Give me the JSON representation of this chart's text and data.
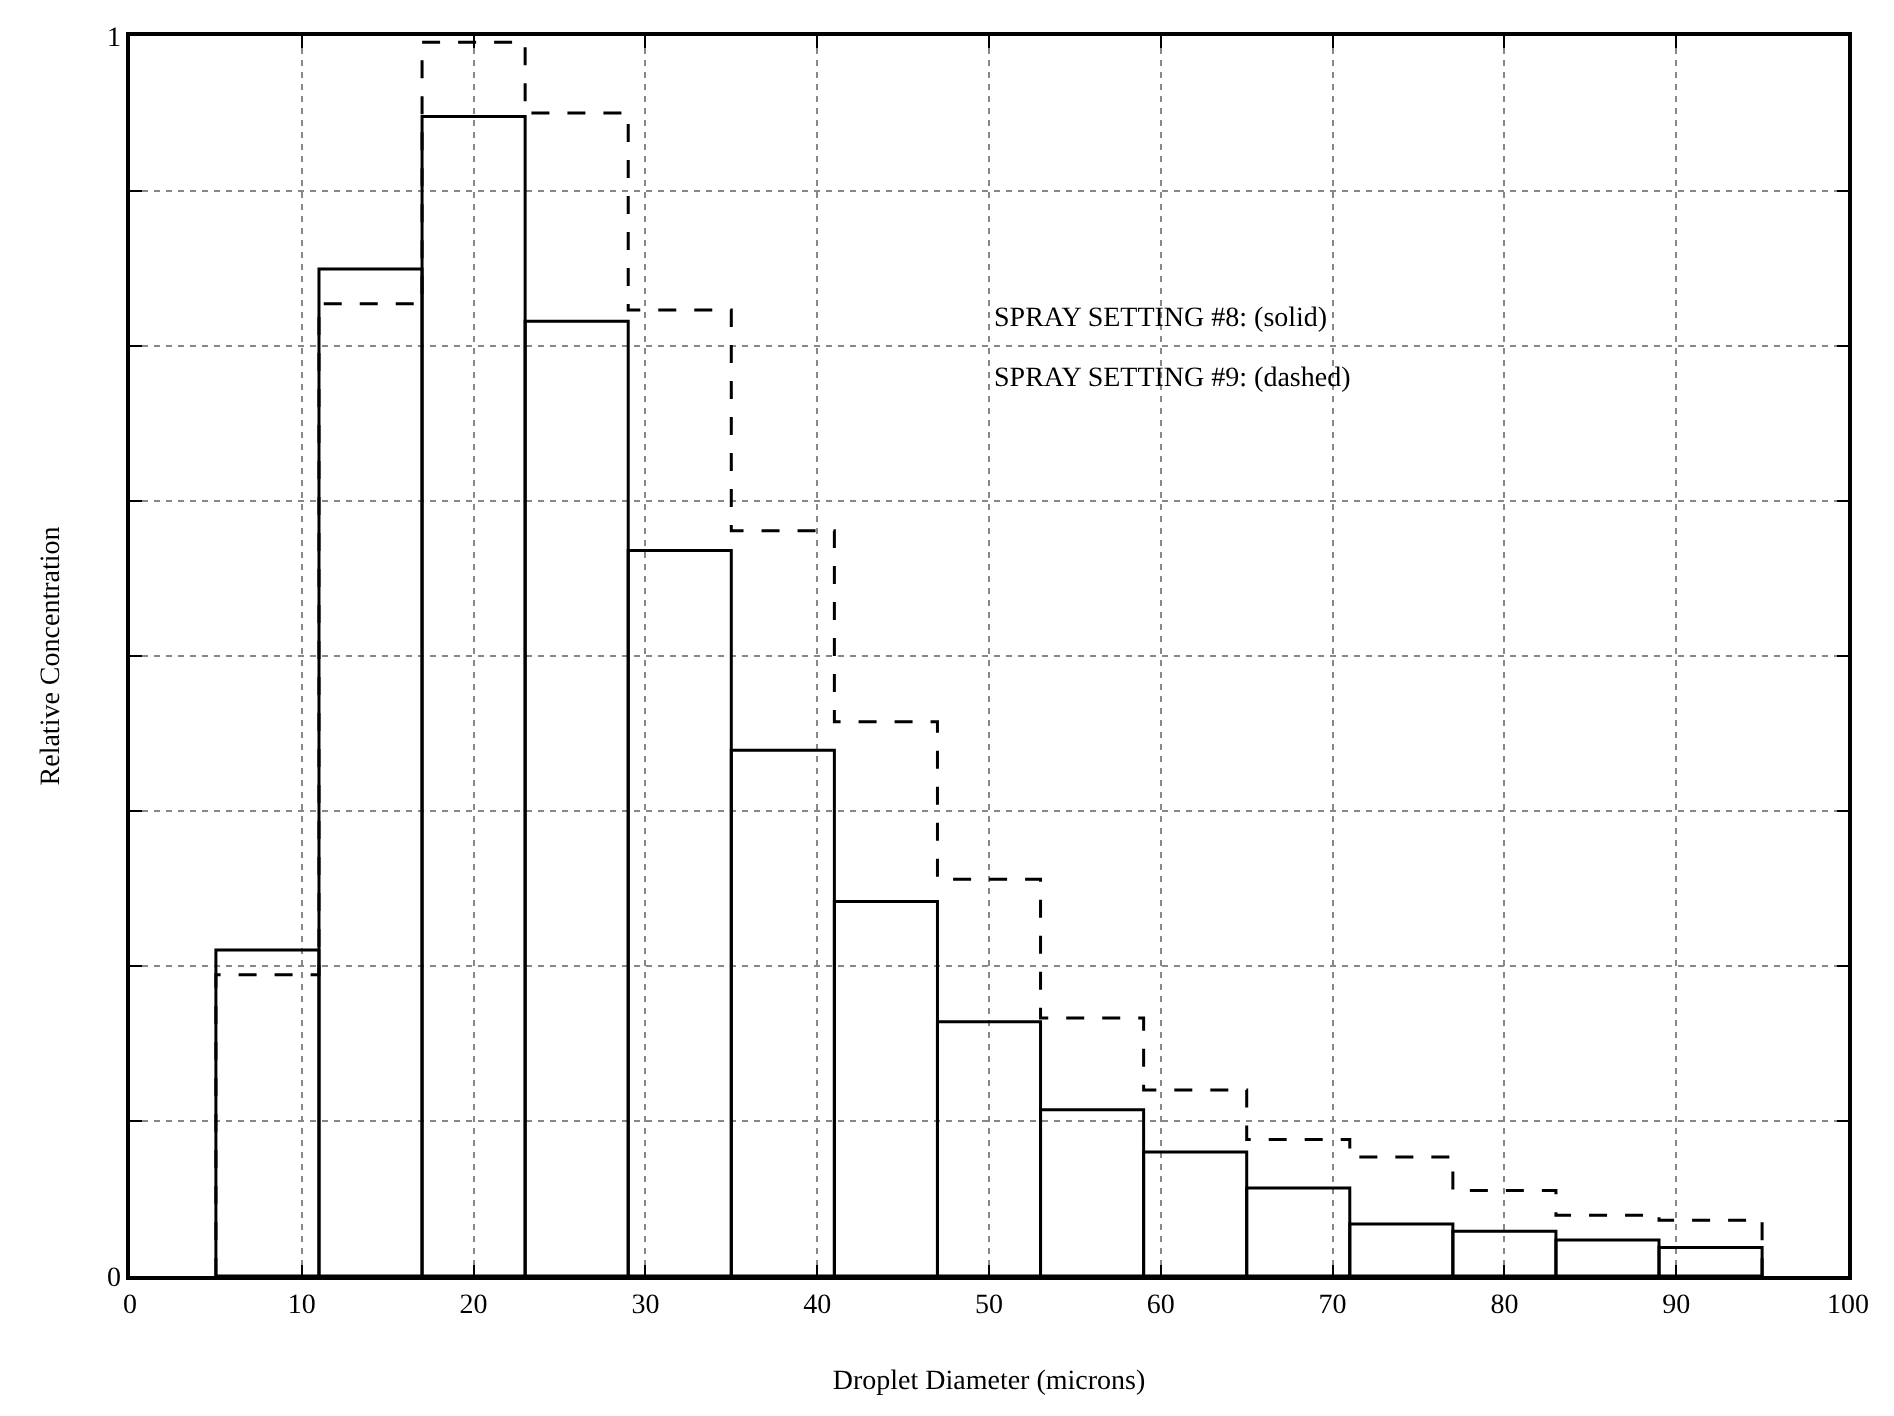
{
  "chart_data": {
    "type": "histogram",
    "xlabel": "Droplet Diameter (microns)",
    "ylabel": "Relative Concentration",
    "bins": [
      5,
      11,
      17,
      23,
      29,
      35,
      41,
      47,
      53,
      59,
      65,
      71,
      77,
      83,
      89,
      95
    ],
    "series": [
      {
        "color": "#000000",
        "line_style": "solid",
        "values": [
          0.263,
          0.812,
          0.935,
          0.77,
          0.585,
          0.424,
          0.302,
          0.205,
          0.134,
          0.1,
          0.071,
          0.042,
          0.036,
          0.029,
          0.023
        ]
      },
      {
        "color": "#000000",
        "line_style": "dashed",
        "values": [
          0.243,
          0.784,
          0.995,
          0.938,
          0.779,
          0.601,
          0.447,
          0.32,
          0.208,
          0.15,
          0.11,
          0.096,
          0.069,
          0.049,
          0.045
        ]
      }
    ],
    "annotations": [
      "SPRAY SETTING #8: (solid)",
      "SPRAY SETTING #9: (dashed)"
    ],
    "xlim": [
      0,
      100
    ],
    "xticks": [
      0,
      10,
      20,
      30,
      40,
      50,
      60,
      70,
      80,
      90,
      100
    ],
    "ylim": [
      0,
      1
    ],
    "yticks": [
      0,
      {
        "value": 0.125,
        "label": null
      },
      {
        "value": 0.25,
        "label": null
      },
      {
        "value": 0.375,
        "label": null
      },
      {
        "value": 0.5,
        "label": null
      },
      {
        "value": 0.625,
        "label": null
      },
      {
        "value": 0.75,
        "label": null
      },
      {
        "value": 0.875,
        "label": null
      },
      1
    ],
    "grid": true
  }
}
